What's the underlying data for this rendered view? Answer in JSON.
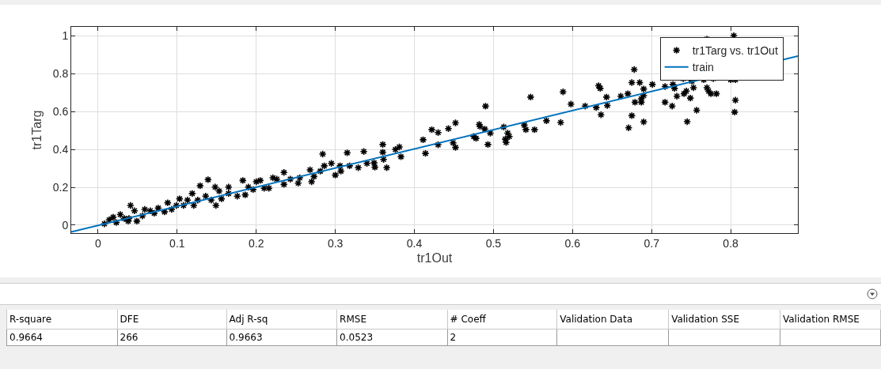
{
  "chart_data": {
    "type": "scatter",
    "xlabel": "tr1Out",
    "ylabel": "tr1Targ",
    "xlim": [
      -0.034,
      0.885
    ],
    "ylim": [
      -0.042,
      1.047
    ],
    "xticks": [
      0,
      0.1,
      0.2,
      0.3,
      0.4,
      0.5,
      0.6,
      0.7,
      0.8
    ],
    "yticks": [
      0,
      0.2,
      0.4,
      0.6,
      0.8,
      1
    ],
    "grid": true,
    "legend": "top right",
    "series": [
      {
        "name": "tr1Targ vs. tr1Out",
        "marker": "cross",
        "color": "#000000",
        "x": [
          0.008,
          0.014,
          0.019,
          0.023,
          0.028,
          0.033,
          0.038,
          0.041,
          0.039,
          0.046,
          0.049,
          0.056,
          0.059,
          0.066,
          0.071,
          0.076,
          0.084,
          0.088,
          0.093,
          0.099,
          0.103,
          0.108,
          0.113,
          0.119,
          0.121,
          0.126,
          0.129,
          0.136,
          0.139,
          0.143,
          0.148,
          0.149,
          0.153,
          0.156,
          0.165,
          0.165,
          0.176,
          0.183,
          0.186,
          0.19,
          0.196,
          0.2,
          0.205,
          0.21,
          0.216,
          0.221,
          0.226,
          0.235,
          0.235,
          0.243,
          0.253,
          0.255,
          0.268,
          0.27,
          0.273,
          0.281,
          0.284,
          0.286,
          0.295,
          0.3,
          0.306,
          0.307,
          0.315,
          0.318,
          0.329,
          0.336,
          0.34,
          0.349,
          0.35,
          0.36,
          0.36,
          0.361,
          0.365,
          0.376,
          0.381,
          0.383,
          0.411,
          0.414,
          0.422,
          0.43,
          0.43,
          0.443,
          0.449,
          0.452,
          0.452,
          0.475,
          0.478,
          0.482,
          0.483,
          0.49,
          0.489,
          0.493,
          0.496,
          0.513,
          0.515,
          0.516,
          0.518,
          0.52,
          0.539,
          0.541,
          0.547,
          0.552,
          0.567,
          0.585,
          0.588,
          0.598,
          0.616,
          0.63,
          0.633,
          0.635,
          0.636,
          0.643,
          0.644,
          0.661,
          0.67,
          0.671,
          0.675,
          0.675,
          0.678,
          0.679,
          0.685,
          0.687,
          0.687,
          0.69,
          0.69,
          0.69,
          0.701,
          0.717,
          0.717,
          0.726,
          0.727,
          0.729,
          0.732,
          0.74,
          0.741,
          0.744,
          0.745,
          0.749,
          0.751,
          0.753,
          0.757,
          0.766,
          0.77,
          0.77,
          0.772,
          0.775,
          0.778,
          0.782,
          0.8,
          0.804,
          0.805,
          0.806,
          0.806
        ],
        "values": [
          0.007,
          0.028,
          0.042,
          0.014,
          0.056,
          0.035,
          0.021,
          0.104,
          0.035,
          0.076,
          0.021,
          0.049,
          0.083,
          0.076,
          0.063,
          0.09,
          0.07,
          0.118,
          0.083,
          0.104,
          0.139,
          0.104,
          0.132,
          0.167,
          0.104,
          0.132,
          0.208,
          0.153,
          0.24,
          0.132,
          0.201,
          0.104,
          0.18,
          0.139,
          0.201,
          0.167,
          0.153,
          0.236,
          0.16,
          0.201,
          0.188,
          0.229,
          0.236,
          0.195,
          0.195,
          0.25,
          0.243,
          0.278,
          0.215,
          0.243,
          0.222,
          0.25,
          0.292,
          0.229,
          0.257,
          0.285,
          0.375,
          0.313,
          0.326,
          0.264,
          0.313,
          0.285,
          0.382,
          0.313,
          0.303,
          0.389,
          0.326,
          0.329,
          0.306,
          0.426,
          0.385,
          0.347,
          0.303,
          0.399,
          0.413,
          0.361,
          0.451,
          0.379,
          0.504,
          0.489,
          0.424,
          0.51,
          0.435,
          0.41,
          0.54,
          0.468,
          0.458,
          0.532,
          0.521,
          0.628,
          0.507,
          0.426,
          0.486,
          0.518,
          0.454,
          0.437,
          0.486,
          0.468,
          0.528,
          0.504,
          0.676,
          0.504,
          0.551,
          0.542,
          0.704,
          0.639,
          0.629,
          0.621,
          0.736,
          0.722,
          0.583,
          0.676,
          0.632,
          0.681,
          0.694,
          0.514,
          0.753,
          0.578,
          0.822,
          0.649,
          0.753,
          0.667,
          0.649,
          0.719,
          0.545,
          0.684,
          0.743,
          0.732,
          0.649,
          0.629,
          0.743,
          0.722,
          0.681,
          0.774,
          0.694,
          0.708,
          0.546,
          0.671,
          0.76,
          0.726,
          0.607,
          0.768,
          0.726,
          0.982,
          0.708,
          0.694,
          0.774,
          0.694,
          0.768,
          1.0,
          0.597,
          0.768,
          0.66
        ]
      },
      {
        "name": "train",
        "type": "line",
        "marker": "none",
        "line_style": "solid",
        "color": "#0072bd",
        "x": [
          -0.034,
          0.885
        ],
        "values": [
          -0.036,
          0.893
        ]
      }
    ],
    "annotations": [
      "R-square",
      "DFE",
      "Adj R-sq",
      "RMSE",
      "# Coeff",
      "Validation Data",
      "Validation SSE",
      "Validation RMSE",
      "0.9664",
      "266",
      "0.9663",
      "0.0523",
      "2"
    ]
  }
}
